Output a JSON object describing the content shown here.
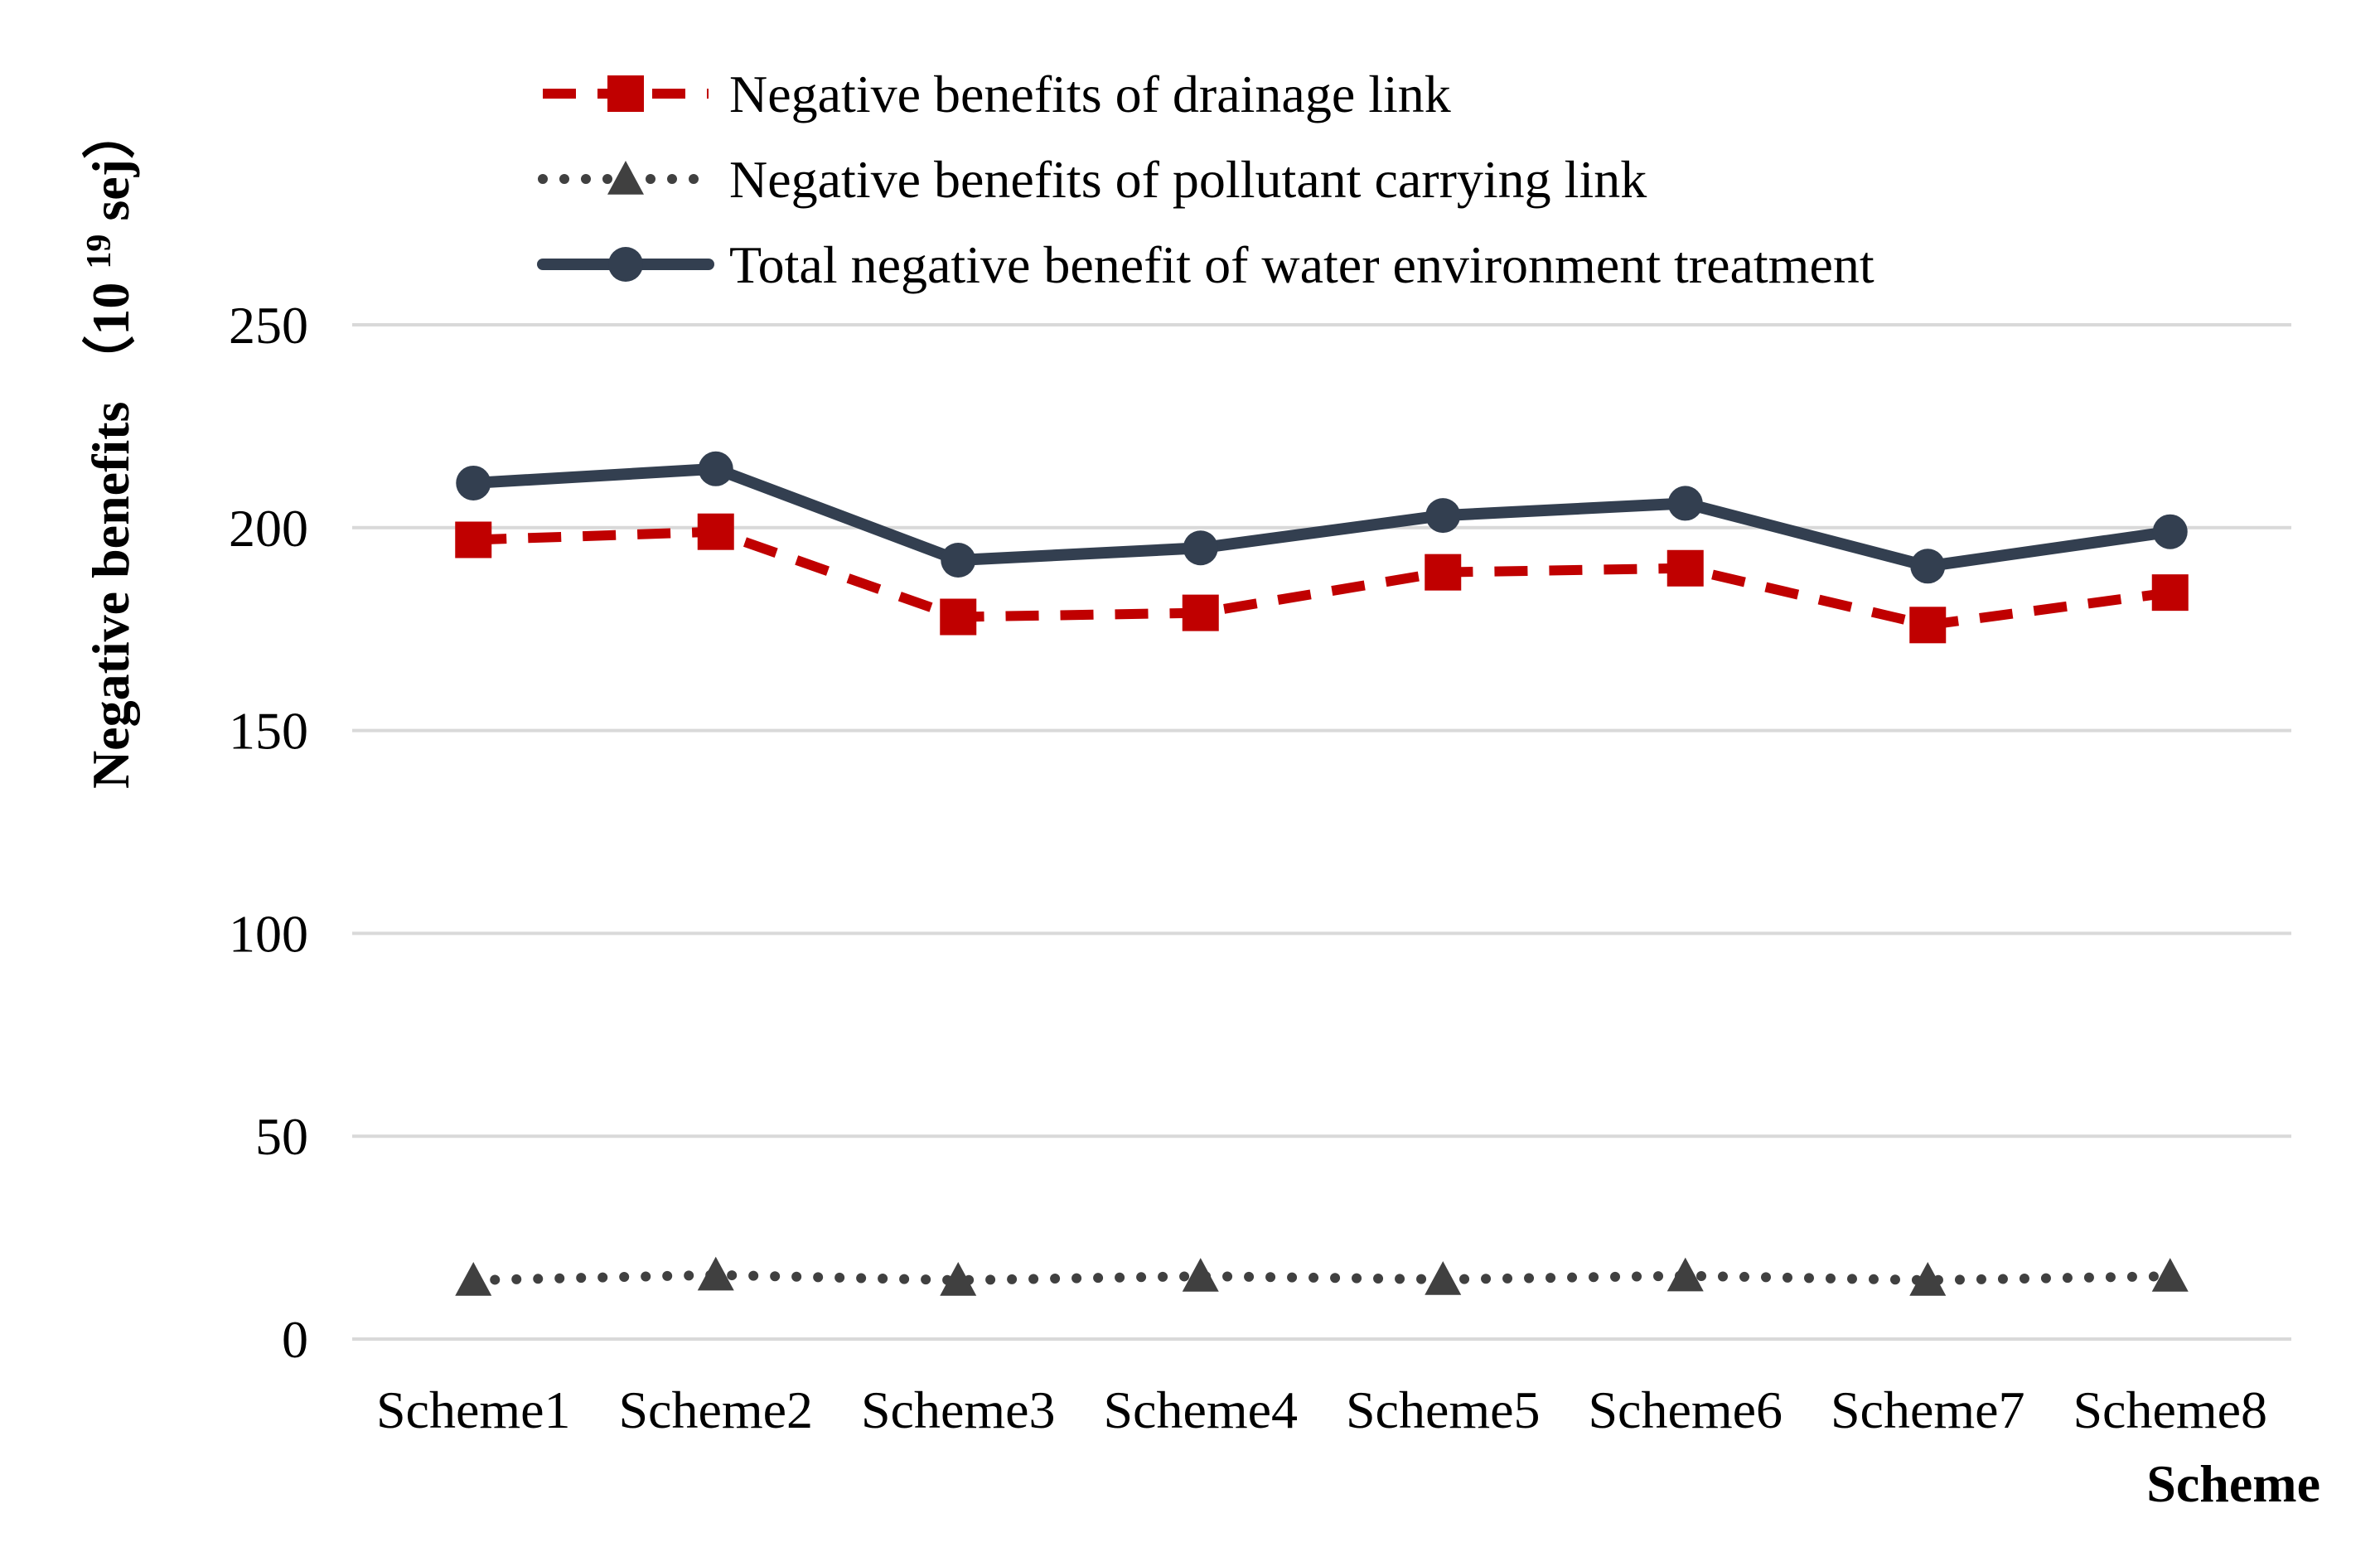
{
  "chart_data": {
    "type": "line",
    "title": "",
    "xlabel": "Scheme",
    "ylabel": "Negative benefits",
    "ylabel_unit_base": "（10",
    "ylabel_unit_exp": "19",
    "ylabel_unit_tail": "sej）",
    "categories": [
      "Scheme1",
      "Scheme2",
      "Scheme3",
      "Scheme4",
      "Scheme5",
      "Scheme6",
      "Scheme7",
      "Scheme8"
    ],
    "ylim": [
      0,
      250
    ],
    "yticks": [
      0,
      50,
      100,
      150,
      200,
      250
    ],
    "grid": true,
    "legend_position": "top",
    "series": [
      {
        "name": "Negative benefits of drainage link",
        "values": [
          197,
          199,
          178,
          179,
          189,
          190,
          176,
          184
        ],
        "color": "#C00000",
        "line_style": "dashed",
        "marker": "square"
      },
      {
        "name": "Negative benefits of pollutant carrying link",
        "values": [
          14.5,
          15.8,
          14.5,
          15.5,
          14.7,
          15.6,
          14.5,
          15.5
        ],
        "color": "#404040",
        "line_style": "dotted",
        "marker": "triangle"
      },
      {
        "name": "Total negative benefit of water environment treatment",
        "values": [
          211,
          214.5,
          192,
          195,
          203,
          206,
          190.5,
          199
        ],
        "color": "#333F50",
        "line_style": "solid",
        "marker": "circle"
      }
    ]
  }
}
